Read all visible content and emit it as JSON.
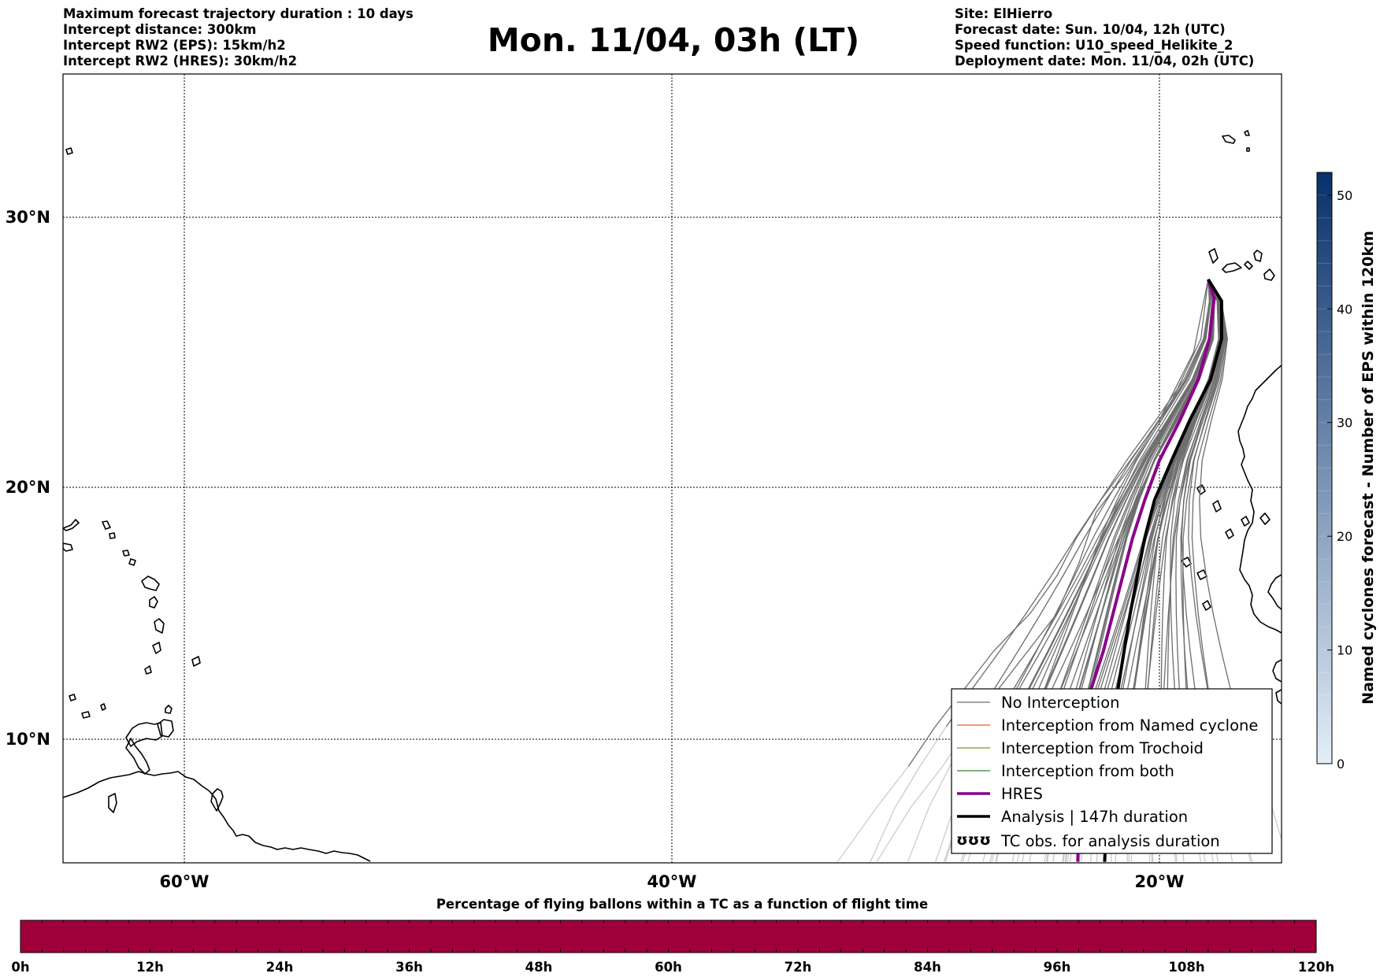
{
  "header": {
    "left_lines": [
      "Maximum forecast trajectory duration : 10 days",
      "Intercept distance: 300km",
      "Intercept RW2 (EPS):  15km/h2",
      "Intercept RW2 (HRES): 30km/h2"
    ],
    "title": "Mon. 11/04, 03h (LT)",
    "right_lines": [
      "Site: ElHierro",
      "Forecast date: Sun. 10/04, 12h (UTC)",
      "Speed function: U10_speed_Helikite_2",
      "Deployment date: Mon. 11/04, 02h (UTC)"
    ]
  },
  "map": {
    "extent": {
      "lon_min": -65,
      "lon_max": -15,
      "lat_min": 5.5,
      "lat_max": 34.8
    },
    "lat_ticks": [
      {
        "value": 30,
        "label": "30°N"
      },
      {
        "value": 20,
        "label": "20°N"
      },
      {
        "value": 10,
        "label": "10°N"
      }
    ],
    "lon_ticks": [
      {
        "value": -60,
        "label": "60°W"
      },
      {
        "value": -40,
        "label": "40°W"
      },
      {
        "value": -20,
        "label": "20°W"
      }
    ],
    "colors": {
      "no_interception": "#6e6e6e",
      "faded_track": "#c8c8c8",
      "named_cyclone": "#f05a23",
      "trochoid": "#8a8a2a",
      "both": "#2e8b2e",
      "hres": "#8b008b",
      "analysis": "#000000"
    },
    "site": {
      "name": "ElHierro",
      "lat": 27.7,
      "lon": -18.0
    },
    "hres_track": [
      [
        27.7,
        -18.0
      ],
      [
        27.0,
        -17.75
      ],
      [
        25.5,
        -17.95
      ],
      [
        24.0,
        -18.4
      ],
      [
        22.5,
        -19.15
      ],
      [
        21.0,
        -20.0
      ],
      [
        19.5,
        -20.6
      ],
      [
        18.0,
        -21.1
      ],
      [
        16.5,
        -21.5
      ],
      [
        15.0,
        -21.9
      ],
      [
        13.5,
        -22.3
      ],
      [
        12.0,
        -22.8
      ],
      [
        10.5,
        -23.0
      ],
      [
        9.0,
        -23.2
      ],
      [
        7.5,
        -23.3
      ],
      [
        5.5,
        -23.35
      ]
    ],
    "analysis_track": [
      [
        27.7,
        -18.0
      ],
      [
        26.9,
        -17.45
      ],
      [
        25.5,
        -17.45
      ],
      [
        24.0,
        -17.9
      ],
      [
        22.5,
        -18.75
      ],
      [
        21.0,
        -19.5
      ],
      [
        19.5,
        -20.2
      ],
      [
        18.0,
        -20.6
      ],
      [
        16.5,
        -20.9
      ],
      [
        15.0,
        -21.2
      ],
      [
        13.5,
        -21.45
      ],
      [
        12.0,
        -21.7
      ],
      [
        10.5,
        -21.85
      ],
      [
        9.0,
        -22.0
      ],
      [
        7.5,
        -22.15
      ],
      [
        5.5,
        -22.25
      ]
    ]
  },
  "legend": {
    "items": [
      {
        "label": "No Interception",
        "style": "no_interception"
      },
      {
        "label": "Interception from Named cyclone",
        "style": "named_cyclone"
      },
      {
        "label": "Interception from Trochoid",
        "style": "trochoid"
      },
      {
        "label": "Interception from both",
        "style": "both"
      },
      {
        "label": "HRES",
        "style": "hres"
      },
      {
        "label": "Analysis | 147h duration",
        "style": "analysis"
      },
      {
        "label": "TC obs. for analysis duration",
        "style": "tc_obs"
      }
    ],
    "tc_symbol": "ʊʊʊ"
  },
  "colorbar": {
    "title": "Named cyclones forecast - Number of EPS within 120km",
    "min": 0,
    "max": 52,
    "ticks": [
      0,
      10,
      20,
      30,
      40,
      50
    ],
    "color_low": "#e3eef8",
    "color_high": "#08306b"
  },
  "timeline": {
    "title": "Percentage of flying ballons within a TC as a function of flight time",
    "bar_color": "#a0003a",
    "ticks": [
      "0h",
      "12h",
      "24h",
      "36h",
      "48h",
      "60h",
      "72h",
      "84h",
      "96h",
      "108h",
      "120h"
    ],
    "minor_count": 60
  }
}
